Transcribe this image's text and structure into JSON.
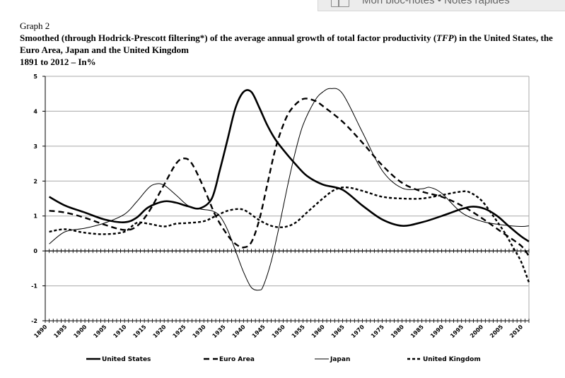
{
  "browser_bar": {
    "text": "Mon bloc-notes • Notes rapides",
    "icon": "notebook-icon"
  },
  "graph_label": "Graph 2",
  "title_part1": "Smoothed (through Hodrick-Prescott filtering*) of the average annual growth of total factor productivity (",
  "title_italic": "TFP",
  "title_part2": ") in the United States, the Euro Area, Japan and the United Kingdom",
  "subtitle": "1891 to 2012 – In%",
  "chart_data": {
    "type": "line",
    "title": "Smoothed (through Hodrick-Prescott filtering*) of the average annual growth of total factor productivity (TFP) in the United States, the Euro Area, Japan and the United Kingdom",
    "subtitle": "1891 to 2012 – In%",
    "xlabel": "",
    "ylabel": "",
    "xlim": [
      1890,
      2012
    ],
    "ylim": [
      -2,
      5
    ],
    "xticks": [
      1890,
      1895,
      1900,
      1905,
      1910,
      1915,
      1920,
      1925,
      1930,
      1935,
      1940,
      1945,
      1950,
      1955,
      1960,
      1965,
      1970,
      1975,
      1980,
      1985,
      1990,
      1995,
      2000,
      2005,
      2010
    ],
    "yticks": [
      -2,
      -1,
      0,
      1,
      2,
      3,
      4,
      5
    ],
    "grid": "horizontal",
    "legend_position": "bottom",
    "series": [
      {
        "name": "United States",
        "style": "solid-thick",
        "color": "#000000",
        "x": [
          1891,
          1895,
          1900,
          1905,
          1910,
          1913,
          1916,
          1920,
          1923,
          1926,
          1929,
          1932,
          1934,
          1936,
          1938,
          1940,
          1942,
          1944,
          1946,
          1948,
          1950,
          1953,
          1956,
          1960,
          1965,
          1970,
          1975,
          1980,
          1985,
          1990,
          1995,
          1998,
          2001,
          2004,
          2007,
          2010,
          2012
        ],
        "y": [
          1.55,
          1.3,
          1.1,
          0.9,
          0.82,
          0.95,
          1.25,
          1.42,
          1.38,
          1.28,
          1.22,
          1.5,
          2.3,
          3.2,
          4.1,
          4.55,
          4.55,
          4.1,
          3.6,
          3.2,
          2.9,
          2.5,
          2.15,
          1.9,
          1.75,
          1.3,
          0.9,
          0.72,
          0.82,
          1.0,
          1.2,
          1.27,
          1.2,
          1.0,
          0.7,
          0.42,
          0.27
        ]
      },
      {
        "name": "Euro Area",
        "style": "dashed-thick",
        "color": "#000000",
        "x": [
          1891,
          1895,
          1900,
          1905,
          1910,
          1913,
          1916,
          1920,
          1923,
          1925,
          1927,
          1930,
          1933,
          1936,
          1938,
          1940,
          1942,
          1944,
          1946,
          1948,
          1950,
          1952,
          1955,
          1958,
          1960,
          1965,
          1970,
          1975,
          1980,
          1985,
          1990,
          1995,
          2000,
          2005,
          2010,
          2012
        ],
        "y": [
          1.15,
          1.1,
          0.95,
          0.75,
          0.6,
          0.7,
          1.1,
          1.9,
          2.5,
          2.65,
          2.5,
          1.8,
          1.0,
          0.45,
          0.2,
          0.1,
          0.25,
          0.9,
          1.9,
          2.9,
          3.6,
          4.05,
          4.35,
          4.3,
          4.15,
          3.7,
          3.1,
          2.45,
          1.95,
          1.7,
          1.55,
          1.3,
          0.95,
          0.55,
          0.15,
          -0.15
        ]
      },
      {
        "name": "Japan",
        "style": "solid-thin",
        "color": "#000000",
        "x": [
          1891,
          1895,
          1900,
          1905,
          1910,
          1913,
          1916,
          1918,
          1920,
          1923,
          1926,
          1929,
          1932,
          1934,
          1936,
          1938,
          1940,
          1942,
          1944,
          1945,
          1947,
          1949,
          1951,
          1953,
          1955,
          1958,
          1960,
          1962,
          1965,
          1970,
          1975,
          1980,
          1985,
          1987,
          1990,
          1995,
          2000,
          2005,
          2010,
          2012
        ],
        "y": [
          0.2,
          0.55,
          0.65,
          0.8,
          1.05,
          1.4,
          1.8,
          1.92,
          1.88,
          1.6,
          1.3,
          1.2,
          1.15,
          1.0,
          0.6,
          0.0,
          -0.6,
          -1.05,
          -1.12,
          -1.0,
          -0.3,
          0.7,
          1.8,
          2.8,
          3.6,
          4.3,
          4.55,
          4.65,
          4.5,
          3.4,
          2.3,
          1.8,
          1.78,
          1.82,
          1.65,
          1.1,
          0.85,
          0.75,
          0.7,
          0.72
        ]
      },
      {
        "name": "United Kingdom",
        "style": "dotted-thick",
        "color": "#000000",
        "x": [
          1891,
          1895,
          1900,
          1905,
          1910,
          1913,
          1916,
          1920,
          1923,
          1926,
          1930,
          1933,
          1936,
          1939,
          1941,
          1944,
          1947,
          1950,
          1953,
          1956,
          1960,
          1963,
          1966,
          1970,
          1975,
          1980,
          1985,
          1990,
          1995,
          1997,
          2000,
          2003,
          2006,
          2008,
          2010,
          2012
        ],
        "y": [
          0.55,
          0.62,
          0.52,
          0.48,
          0.55,
          0.8,
          0.78,
          0.7,
          0.78,
          0.8,
          0.85,
          1.0,
          1.15,
          1.2,
          1.12,
          0.88,
          0.72,
          0.68,
          0.8,
          1.1,
          1.5,
          1.75,
          1.82,
          1.72,
          1.55,
          1.5,
          1.5,
          1.6,
          1.7,
          1.68,
          1.45,
          1.0,
          0.5,
          0.1,
          -0.3,
          -0.9
        ]
      }
    ]
  }
}
